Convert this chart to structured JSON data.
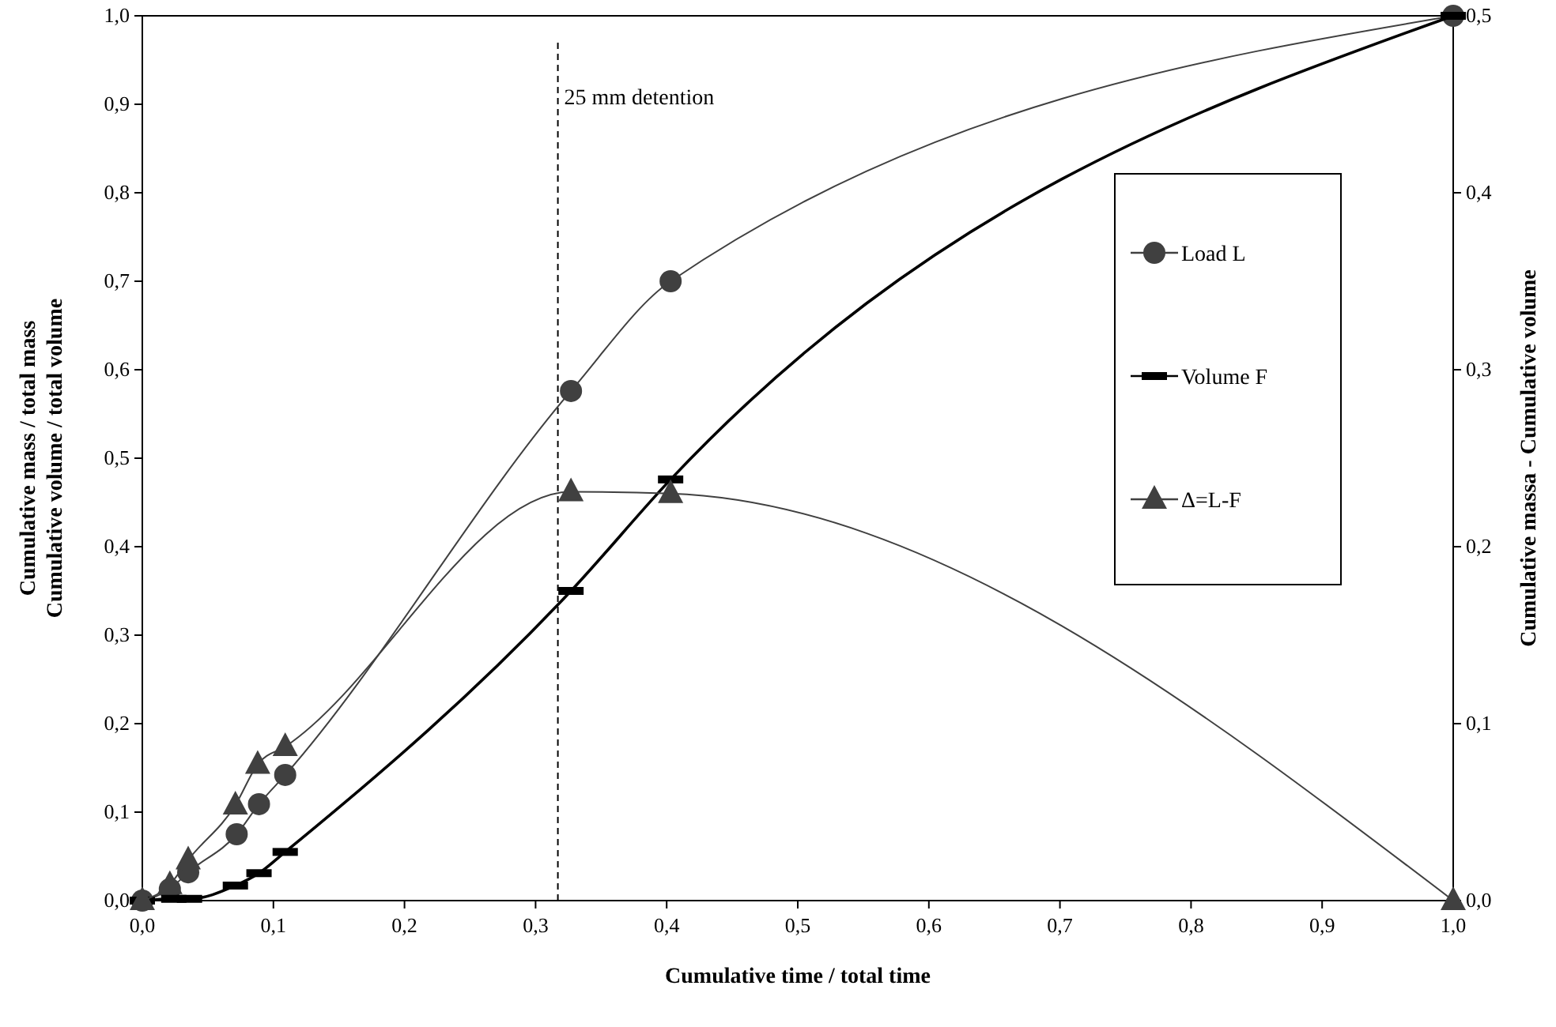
{
  "chart_data": {
    "type": "line",
    "xlabel": "Cumulative time / total time",
    "ylabel": "Cumulative mass / total mass\nCumulative volume / total volume",
    "y2label": "Cumulative massa - Cumulative volume",
    "xlim": [
      0,
      1
    ],
    "xticks": [
      {
        "value": 0,
        "label": "0,0"
      },
      {
        "value": 0.1,
        "label": "0,1"
      },
      {
        "value": 0.2,
        "label": "0,2"
      },
      {
        "value": 0.3,
        "label": "0,3"
      },
      {
        "value": 0.4,
        "label": "0,4"
      },
      {
        "value": 0.5,
        "label": "0,5"
      },
      {
        "value": 0.6,
        "label": "0,6"
      },
      {
        "value": 0.7,
        "label": "0,7"
      },
      {
        "value": 0.8,
        "label": "0,8"
      },
      {
        "value": 0.9,
        "label": "0,9"
      },
      {
        "value": 1,
        "label": "1,0"
      }
    ],
    "ylim": [
      0,
      1
    ],
    "yticks": [
      {
        "value": 0,
        "label": "0,0"
      },
      {
        "value": 0.1,
        "label": "0,1"
      },
      {
        "value": 0.2,
        "label": "0,2"
      },
      {
        "value": 0.3,
        "label": "0,3"
      },
      {
        "value": 0.4,
        "label": "0,4"
      },
      {
        "value": 0.5,
        "label": "0,5"
      },
      {
        "value": 0.6,
        "label": "0,6"
      },
      {
        "value": 0.7,
        "label": "0,7"
      },
      {
        "value": 0.8,
        "label": "0,8"
      },
      {
        "value": 0.9,
        "label": "0,9"
      },
      {
        "value": 1,
        "label": "1,0"
      }
    ],
    "y2lim": [
      0,
      0.5
    ],
    "y2ticks": [
      {
        "value": 0,
        "label": "0,0"
      },
      {
        "value": 0.1,
        "label": "0,1"
      },
      {
        "value": 0.2,
        "label": "0,2"
      },
      {
        "value": 0.3,
        "label": "0,3"
      },
      {
        "value": 0.4,
        "label": "0,4"
      },
      {
        "value": 0.5,
        "label": "0,5"
      }
    ],
    "grid": false,
    "legend": "right",
    "line_style": "solid",
    "ref_lines": [
      {
        "axis": "x",
        "value": 0.317,
        "label": "25 mm detention",
        "line_style": "dashed",
        "color": "#000000"
      }
    ],
    "series": [
      {
        "name": "Load L",
        "color": "#404040",
        "marker": "circle",
        "x": [
          0,
          0.021,
          0.035,
          0.072,
          0.089,
          0.109,
          0.327,
          0.403,
          1
        ],
        "values": [
          0,
          0.013,
          0.032,
          0.075,
          0.109,
          0.142,
          0.576,
          0.7,
          1
        ]
      },
      {
        "name": "Volume F",
        "color": "#000000",
        "marker": "square",
        "x": [
          0,
          0.024,
          0.036,
          0.071,
          0.089,
          0.109,
          0.327,
          0.403,
          1
        ],
        "values": [
          0,
          0.002,
          0.002,
          0.017,
          0.031,
          0.055,
          0.35,
          0.476,
          1
        ]
      },
      {
        "name": "Δ=L-F",
        "color": "#404040",
        "marker": "triangle",
        "axis": "y2",
        "x": [
          0,
          0.021,
          0.035,
          0.071,
          0.088,
          0.109,
          0.327,
          0.403,
          1
        ],
        "values": [
          0,
          0.009,
          0.023,
          0.054,
          0.077,
          0.087,
          0.231,
          0.23,
          0
        ]
      }
    ]
  }
}
